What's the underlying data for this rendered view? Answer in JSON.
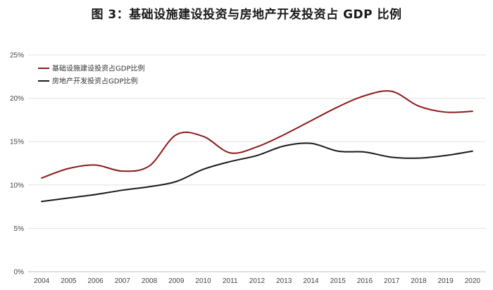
{
  "chart_data": {
    "type": "line",
    "title": "图 3：基础设施建设投资与房地产开发投资占 GDP 比例",
    "xlabel": "",
    "ylabel": "",
    "categories": [
      "2004",
      "2005",
      "2006",
      "2007",
      "2008",
      "2009",
      "2010",
      "2011",
      "2012",
      "2013",
      "2014",
      "2015",
      "2016",
      "2017",
      "2018",
      "2019",
      "2020"
    ],
    "ylim": [
      0,
      25
    ],
    "y_ticks": [
      "0%",
      "5%",
      "10%",
      "15%",
      "20%",
      "25%"
    ],
    "grid": true,
    "legend_position": "top-left",
    "series": [
      {
        "name": "基础设施建设投资占GDP比例",
        "color": "#8b1a1a",
        "values": [
          10.8,
          11.9,
          12.3,
          11.6,
          12.2,
          15.8,
          15.6,
          13.7,
          14.4,
          15.8,
          17.4,
          19.0,
          20.3,
          20.8,
          19.1,
          18.4,
          18.5
        ]
      },
      {
        "name": "房地产开发投资占GDP比例",
        "color": "#1a1a1a",
        "values": [
          8.1,
          8.5,
          8.9,
          9.4,
          9.8,
          10.4,
          11.8,
          12.7,
          13.4,
          14.5,
          14.8,
          13.9,
          13.8,
          13.2,
          13.1,
          13.4,
          13.9
        ]
      }
    ]
  }
}
